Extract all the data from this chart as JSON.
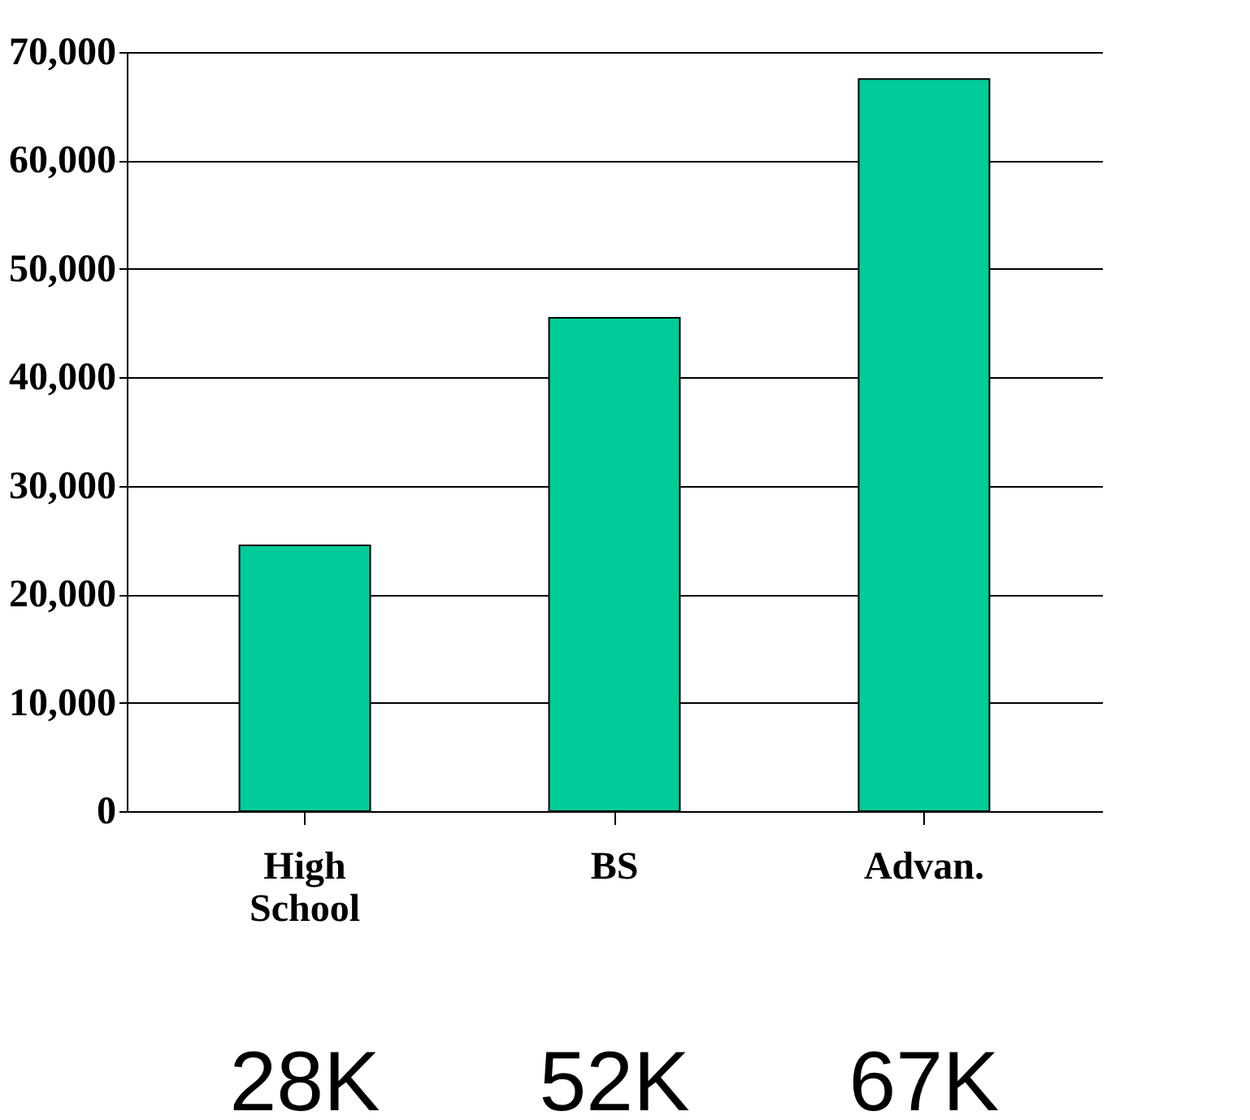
{
  "chart_data": {
    "type": "bar",
    "categories": [
      "High School",
      "BS",
      "Advan."
    ],
    "values": [
      24500,
      45500,
      67500
    ],
    "color": "#00cc99",
    "ylim": [
      0,
      70000
    ],
    "yticks": [
      0,
      {
        "value": 10000,
        "label": "10,000"
      },
      {
        "value": 20000,
        "label": "20,000"
      },
      {
        "value": 30000,
        "label": "30,000"
      },
      {
        "value": 40000,
        "label": "40,000"
      },
      {
        "value": 50000,
        "label": "50,000"
      },
      {
        "value": 60000,
        "label": "60,000"
      },
      {
        "value": 70000,
        "label": "70,000"
      }
    ],
    "grid": "y",
    "annotations": [
      "28K",
      "52K",
      "67K"
    ]
  }
}
